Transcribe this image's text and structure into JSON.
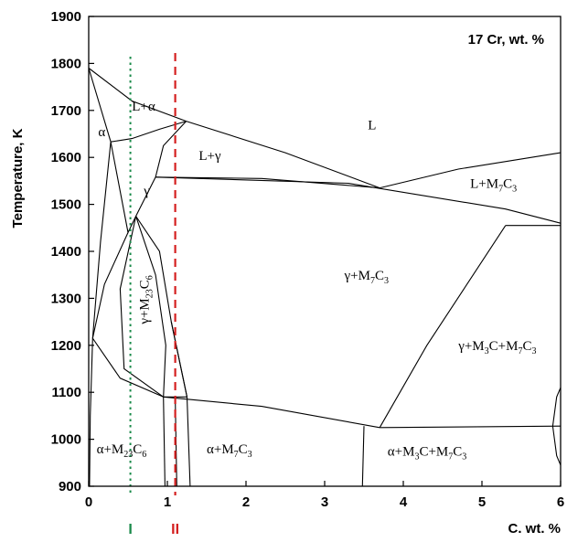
{
  "chart_data": {
    "type": "phase-diagram",
    "title": "17 Cr, wt. %",
    "xlabel": "C. wt. %",
    "ylabel": "Temperature, K",
    "xlim": [
      0,
      6
    ],
    "ylim": [
      900,
      1900
    ],
    "xticks": [
      0,
      1,
      2,
      3,
      4,
      5,
      6
    ],
    "yticks": [
      900,
      1000,
      1100,
      1200,
      1300,
      1400,
      1500,
      1600,
      1700,
      1800,
      1900
    ],
    "grid": false,
    "regions": [
      {
        "id": "L",
        "base": "L",
        "text": "L",
        "x": 3.55,
        "y": 1660
      },
      {
        "id": "L+a",
        "base": "L+α",
        "text": "L+α",
        "x": 0.55,
        "y": 1700
      },
      {
        "id": "a-top",
        "base": "α",
        "text": "α",
        "x": 0.12,
        "y": 1645
      },
      {
        "id": "L+g",
        "base": "L+γ",
        "text": "L+γ",
        "x": 1.4,
        "y": 1595
      },
      {
        "id": "g",
        "base": "γ",
        "text": "γ",
        "x": 0.7,
        "y": 1520
      },
      {
        "id": "L+M7C3",
        "base": "L+M",
        "sub": [
          "7",
          "C",
          "3"
        ],
        "text": "L+M7C3",
        "x": 4.85,
        "y": 1535
      },
      {
        "id": "g+M7C3",
        "base": "γ+M",
        "sub": [
          "7",
          "C",
          "3"
        ],
        "text": "γ+M7C3",
        "x": 3.25,
        "y": 1340
      },
      {
        "id": "g+M23C6",
        "base": "γ+M",
        "sub": [
          "23",
          "C",
          "6"
        ],
        "text": "γ+M23C6",
        "x": 0.76,
        "y": 1245,
        "rotate": -90
      },
      {
        "id": "g+M3C+M7C3",
        "base": "γ+M",
        "sub": [
          "3",
          "C+M",
          "7",
          "C",
          "3"
        ],
        "text": "γ+M3C+M7C3",
        "x": 4.7,
        "y": 1190
      },
      {
        "id": "a+M23C6",
        "base": "α+M",
        "sub": [
          "23",
          "C",
          "6"
        ],
        "text": "α+M23C6",
        "x": 0.1,
        "y": 970
      },
      {
        "id": "a+M7C3",
        "base": "α+M",
        "sub": [
          "7",
          "C",
          "3"
        ],
        "text": "α+M7C3",
        "x": 1.5,
        "y": 970
      },
      {
        "id": "a+M3C+M7C3",
        "base": "α+M",
        "sub": [
          "3",
          "C+M",
          "7",
          "C",
          "3"
        ],
        "text": "α+M3C+M7C3",
        "x": 3.8,
        "y": 965
      }
    ],
    "markers": [
      {
        "label": "I",
        "x": 0.53,
        "color": "#1a8a4a",
        "style": "dotted"
      },
      {
        "label": "II",
        "x": 1.1,
        "color": "#d42020",
        "style": "dashed"
      }
    ],
    "boundaries": [
      [
        [
          0,
          1790
        ],
        [
          0.55,
          1720
        ],
        [
          1.24,
          1677
        ]
      ],
      [
        [
          0,
          1790
        ],
        [
          0.28,
          1633
        ]
      ],
      [
        [
          0.28,
          1633
        ],
        [
          0.55,
          1640
        ],
        [
          0.9,
          1660
        ],
        [
          1.24,
          1677
        ]
      ],
      [
        [
          0.28,
          1633
        ],
        [
          0.15,
          1420
        ],
        [
          0.05,
          1215
        ],
        [
          0.02,
          1050
        ],
        [
          0.01,
          900
        ]
      ],
      [
        [
          1.24,
          1677
        ],
        [
          0.95,
          1625
        ],
        [
          0.85,
          1558
        ]
      ],
      [
        [
          1.24,
          1677
        ],
        [
          2.5,
          1610
        ],
        [
          3.7,
          1535
        ]
      ],
      [
        [
          0.85,
          1558
        ],
        [
          2.2,
          1555
        ],
        [
          3.7,
          1535
        ]
      ],
      [
        [
          0.85,
          1558
        ],
        [
          3.3,
          1545
        ],
        [
          5.3,
          1490
        ],
        [
          6,
          1460
        ]
      ],
      [
        [
          0.28,
          1633
        ],
        [
          0.5,
          1440
        ],
        [
          0.6,
          1475
        ],
        [
          0.85,
          1558
        ]
      ],
      [
        [
          0.5,
          1440
        ],
        [
          0.2,
          1330
        ],
        [
          0.05,
          1215
        ]
      ],
      [
        [
          0.05,
          1215
        ],
        [
          0.4,
          1130
        ],
        [
          0.95,
          1090
        ]
      ],
      [
        [
          0.6,
          1475
        ],
        [
          0.4,
          1320
        ],
        [
          0.45,
          1150
        ],
        [
          0.95,
          1090
        ]
      ],
      [
        [
          0.6,
          1475
        ],
        [
          0.85,
          1350
        ],
        [
          0.98,
          1200
        ],
        [
          0.95,
          1090
        ]
      ],
      [
        [
          0.6,
          1475
        ],
        [
          0.9,
          1400
        ],
        [
          1.05,
          1250
        ],
        [
          1.25,
          1090
        ]
      ],
      [
        [
          0.95,
          1090
        ],
        [
          1.25,
          1090
        ]
      ],
      [
        [
          0.95,
          1090
        ],
        [
          0.97,
          900
        ]
      ],
      [
        [
          1.1,
          1090
        ],
        [
          1.12,
          900
        ]
      ],
      [
        [
          1.05,
          1250
        ],
        [
          1.25,
          1090
        ],
        [
          1.29,
          900
        ]
      ],
      [
        [
          3.7,
          1535
        ],
        [
          4.7,
          1575
        ],
        [
          6,
          1610
        ]
      ],
      [
        [
          0.95,
          1090
        ],
        [
          2.2,
          1070
        ],
        [
          3.7,
          1025
        ]
      ],
      [
        [
          3.7,
          1025
        ],
        [
          6,
          1028
        ]
      ],
      [
        [
          3.7,
          1025
        ],
        [
          4.3,
          1200
        ],
        [
          5.3,
          1455
        ]
      ],
      [
        [
          5.3,
          1455
        ],
        [
          6,
          1455
        ]
      ],
      [
        [
          3.5,
          1028
        ],
        [
          3.48,
          900
        ]
      ],
      [
        [
          6,
          1028
        ],
        [
          6,
          1028
        ]
      ],
      [
        [
          5.9,
          1028
        ],
        [
          5.95,
          965
        ],
        [
          6,
          945
        ]
      ],
      [
        [
          5.9,
          1028
        ],
        [
          5.95,
          1090
        ],
        [
          6,
          1110
        ]
      ]
    ]
  }
}
